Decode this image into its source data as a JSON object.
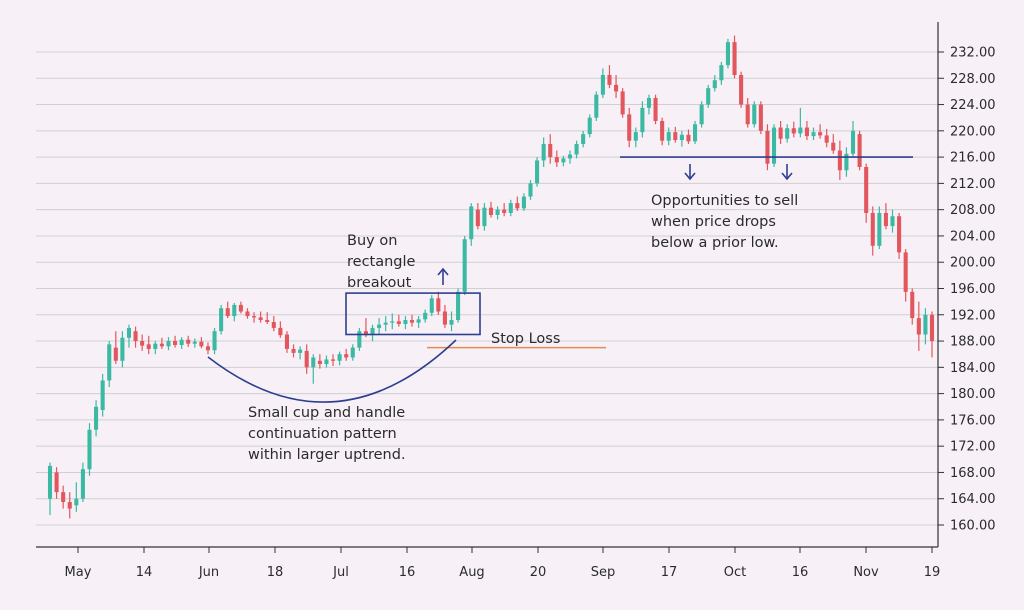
{
  "chart_data": {
    "type": "candlestick",
    "title": "",
    "xlabel": "",
    "ylabel": "",
    "ylim": [
      156,
      236
    ],
    "y_ticks": [
      "160.00",
      "164.00",
      "168.00",
      "172.00",
      "176.00",
      "180.00",
      "184.00",
      "188.00",
      "192.00",
      "196.00",
      "200.00",
      "204.00",
      "208.00",
      "212.00",
      "216.00",
      "220.00",
      "224.00",
      "228.00",
      "232.00"
    ],
    "x_ticks": [
      "May",
      "14",
      "Jun",
      "18",
      "Jul",
      "16",
      "Aug",
      "20",
      "Sep",
      "17",
      "Oct",
      "16",
      "Nov",
      "19"
    ],
    "grid": "horizontal",
    "colors": {
      "up": "#3bb9a3",
      "down": "#e1575d",
      "annotation": "#2f3f8f",
      "stop_loss": "#e08a55",
      "grid": "#cfcfd4",
      "axis": "#333333"
    },
    "candles": [
      {
        "o": 164,
        "h": 169.5,
        "l": 161.5,
        "c": 169
      },
      {
        "o": 168,
        "h": 168.8,
        "l": 164,
        "c": 165
      },
      {
        "o": 165,
        "h": 166,
        "l": 162.5,
        "c": 163.5
      },
      {
        "o": 163.5,
        "h": 165,
        "l": 161,
        "c": 162.5
      },
      {
        "o": 163,
        "h": 166.5,
        "l": 162,
        "c": 164
      },
      {
        "o": 164,
        "h": 169.5,
        "l": 163.5,
        "c": 168.5
      },
      {
        "o": 168.5,
        "h": 175.5,
        "l": 167.5,
        "c": 174.5
      },
      {
        "o": 174.5,
        "h": 179,
        "l": 173.5,
        "c": 178
      },
      {
        "o": 177.5,
        "h": 183,
        "l": 176.5,
        "c": 182
      },
      {
        "o": 182,
        "h": 188,
        "l": 181,
        "c": 187.5
      },
      {
        "o": 187,
        "h": 189.5,
        "l": 184.5,
        "c": 185
      },
      {
        "o": 185,
        "h": 189.5,
        "l": 184,
        "c": 188.5
      },
      {
        "o": 188.5,
        "h": 190.5,
        "l": 187,
        "c": 190
      },
      {
        "o": 189.5,
        "h": 190.2,
        "l": 187,
        "c": 188
      },
      {
        "o": 188,
        "h": 189,
        "l": 186.5,
        "c": 187.3
      },
      {
        "o": 187.5,
        "h": 188.8,
        "l": 186,
        "c": 186.8
      },
      {
        "o": 186.8,
        "h": 188,
        "l": 186,
        "c": 187.6
      },
      {
        "o": 187.6,
        "h": 188.5,
        "l": 186.8,
        "c": 187.2
      },
      {
        "o": 187.2,
        "h": 188.6,
        "l": 186.6,
        "c": 188
      },
      {
        "o": 188,
        "h": 188.8,
        "l": 187,
        "c": 187.4
      },
      {
        "o": 187.4,
        "h": 188.6,
        "l": 186.8,
        "c": 188.2
      },
      {
        "o": 188.2,
        "h": 188.8,
        "l": 187.1,
        "c": 187.6
      },
      {
        "o": 187.6,
        "h": 188.4,
        "l": 187,
        "c": 187.9
      },
      {
        "o": 187.9,
        "h": 188.6,
        "l": 186.9,
        "c": 187.2
      },
      {
        "o": 187.2,
        "h": 187.8,
        "l": 186,
        "c": 186.6
      },
      {
        "o": 186.6,
        "h": 190,
        "l": 186,
        "c": 189.5
      },
      {
        "o": 189.5,
        "h": 193.5,
        "l": 189,
        "c": 193
      },
      {
        "o": 193,
        "h": 194,
        "l": 191.5,
        "c": 191.8
      },
      {
        "o": 191.8,
        "h": 193.8,
        "l": 191,
        "c": 193.5
      },
      {
        "o": 193.5,
        "h": 194,
        "l": 192.2,
        "c": 192.5
      },
      {
        "o": 192.5,
        "h": 193,
        "l": 191.4,
        "c": 191.8
      },
      {
        "o": 191.8,
        "h": 192.4,
        "l": 190.8,
        "c": 191.6
      },
      {
        "o": 191.6,
        "h": 192.5,
        "l": 190.8,
        "c": 191.2
      },
      {
        "o": 191.2,
        "h": 192.4,
        "l": 190.6,
        "c": 190.9
      },
      {
        "o": 190.9,
        "h": 191.8,
        "l": 189.5,
        "c": 190
      },
      {
        "o": 190,
        "h": 191,
        "l": 188.5,
        "c": 188.9
      },
      {
        "o": 189,
        "h": 189.5,
        "l": 186.2,
        "c": 186.8
      },
      {
        "o": 186.8,
        "h": 187.5,
        "l": 185.5,
        "c": 186.2
      },
      {
        "o": 186.2,
        "h": 187.2,
        "l": 185.2,
        "c": 186.7
      },
      {
        "o": 186.5,
        "h": 187.5,
        "l": 183,
        "c": 184
      },
      {
        "o": 184,
        "h": 186,
        "l": 181.5,
        "c": 185.5
      },
      {
        "o": 185,
        "h": 186,
        "l": 183.8,
        "c": 184.5
      },
      {
        "o": 184.5,
        "h": 185.8,
        "l": 184,
        "c": 185.2
      },
      {
        "o": 185.2,
        "h": 186,
        "l": 184.2,
        "c": 185
      },
      {
        "o": 185,
        "h": 186.4,
        "l": 184.3,
        "c": 186
      },
      {
        "o": 186,
        "h": 186.8,
        "l": 185,
        "c": 185.5
      },
      {
        "o": 185.5,
        "h": 187.5,
        "l": 185,
        "c": 187
      },
      {
        "o": 187,
        "h": 190,
        "l": 186.5,
        "c": 189.5
      },
      {
        "o": 189.5,
        "h": 191.5,
        "l": 188.6,
        "c": 188.9
      },
      {
        "o": 188.9,
        "h": 190.5,
        "l": 188,
        "c": 190
      },
      {
        "o": 190,
        "h": 191.5,
        "l": 189,
        "c": 190.5
      },
      {
        "o": 190.5,
        "h": 191.8,
        "l": 189.5,
        "c": 190.8
      },
      {
        "o": 190.8,
        "h": 192.2,
        "l": 189.8,
        "c": 191
      },
      {
        "o": 191,
        "h": 192,
        "l": 190.2,
        "c": 190.6
      },
      {
        "o": 190.6,
        "h": 191.8,
        "l": 189.8,
        "c": 191.2
      },
      {
        "o": 191.2,
        "h": 192,
        "l": 190.2,
        "c": 190.8
      },
      {
        "o": 190.8,
        "h": 191.8,
        "l": 190,
        "c": 191.3
      },
      {
        "o": 191.3,
        "h": 192.8,
        "l": 190.8,
        "c": 192.3
      },
      {
        "o": 192.3,
        "h": 195,
        "l": 191.8,
        "c": 194.5
      },
      {
        "o": 194.5,
        "h": 195.5,
        "l": 192,
        "c": 192.5
      },
      {
        "o": 192.5,
        "h": 193.5,
        "l": 190,
        "c": 190.5
      },
      {
        "o": 190.5,
        "h": 192.5,
        "l": 189.5,
        "c": 191.2
      },
      {
        "o": 191.2,
        "h": 196,
        "l": 190.8,
        "c": 195.5
      },
      {
        "o": 195.5,
        "h": 204,
        "l": 195,
        "c": 203.5
      },
      {
        "o": 203.5,
        "h": 209,
        "l": 202.5,
        "c": 208.5
      },
      {
        "o": 208,
        "h": 209,
        "l": 205,
        "c": 205.5
      },
      {
        "o": 205.5,
        "h": 209,
        "l": 204.8,
        "c": 208.3
      },
      {
        "o": 208.3,
        "h": 209.2,
        "l": 206.8,
        "c": 207.2
      },
      {
        "o": 207.2,
        "h": 208.5,
        "l": 206.5,
        "c": 208
      },
      {
        "o": 208,
        "h": 209,
        "l": 207,
        "c": 207.5
      },
      {
        "o": 207.5,
        "h": 209.5,
        "l": 207,
        "c": 209
      },
      {
        "o": 209,
        "h": 210,
        "l": 207.8,
        "c": 208.2
      },
      {
        "o": 208.2,
        "h": 210.5,
        "l": 207.8,
        "c": 210
      },
      {
        "o": 210,
        "h": 212.5,
        "l": 209.5,
        "c": 212
      },
      {
        "o": 212,
        "h": 216,
        "l": 211.5,
        "c": 215.5
      },
      {
        "o": 215.5,
        "h": 219,
        "l": 214.5,
        "c": 218
      },
      {
        "o": 218,
        "h": 219.5,
        "l": 215,
        "c": 216
      },
      {
        "o": 216,
        "h": 217,
        "l": 214.5,
        "c": 215.2
      },
      {
        "o": 215.2,
        "h": 216.2,
        "l": 214.6,
        "c": 215.8
      },
      {
        "o": 215.8,
        "h": 217,
        "l": 215,
        "c": 216.4
      },
      {
        "o": 216.4,
        "h": 218.5,
        "l": 215.8,
        "c": 218
      },
      {
        "o": 218,
        "h": 220,
        "l": 217.5,
        "c": 219.5
      },
      {
        "o": 219.5,
        "h": 222.5,
        "l": 219,
        "c": 222
      },
      {
        "o": 222,
        "h": 226,
        "l": 221.5,
        "c": 225.5
      },
      {
        "o": 225.5,
        "h": 229.5,
        "l": 225,
        "c": 228.5
      },
      {
        "o": 228.5,
        "h": 230,
        "l": 226.5,
        "c": 227
      },
      {
        "o": 227,
        "h": 228.5,
        "l": 225,
        "c": 226
      },
      {
        "o": 226,
        "h": 226.5,
        "l": 222,
        "c": 222.5
      },
      {
        "o": 222.5,
        "h": 223.5,
        "l": 217.5,
        "c": 218.5
      },
      {
        "o": 218.5,
        "h": 220.5,
        "l": 217.5,
        "c": 219.8
      },
      {
        "o": 219.8,
        "h": 224.5,
        "l": 219,
        "c": 223.5
      },
      {
        "o": 223.5,
        "h": 225.5,
        "l": 222.5,
        "c": 225
      },
      {
        "o": 225,
        "h": 225.5,
        "l": 221,
        "c": 221.5
      },
      {
        "o": 221.5,
        "h": 222,
        "l": 217.8,
        "c": 218.5
      },
      {
        "o": 218.5,
        "h": 220.5,
        "l": 217.8,
        "c": 219.8
      },
      {
        "o": 219.8,
        "h": 220.6,
        "l": 218.2,
        "c": 218.6
      },
      {
        "o": 218.6,
        "h": 220,
        "l": 217.6,
        "c": 219.4
      },
      {
        "o": 219.4,
        "h": 220.2,
        "l": 218,
        "c": 218.4
      },
      {
        "o": 218.4,
        "h": 221.5,
        "l": 218,
        "c": 221
      },
      {
        "o": 221,
        "h": 224.5,
        "l": 220.5,
        "c": 224
      },
      {
        "o": 224,
        "h": 227,
        "l": 223.5,
        "c": 226.5
      },
      {
        "o": 226.5,
        "h": 228.5,
        "l": 226,
        "c": 227.7
      },
      {
        "o": 227.7,
        "h": 230.5,
        "l": 227,
        "c": 230
      },
      {
        "o": 230,
        "h": 234,
        "l": 229.5,
        "c": 233.5
      },
      {
        "o": 233.5,
        "h": 234.5,
        "l": 228,
        "c": 228.5
      },
      {
        "o": 228.5,
        "h": 229,
        "l": 223.5,
        "c": 224
      },
      {
        "o": 224,
        "h": 225,
        "l": 220.5,
        "c": 221
      },
      {
        "o": 221,
        "h": 224.5,
        "l": 220.5,
        "c": 224
      },
      {
        "o": 224,
        "h": 224.5,
        "l": 219.5,
        "c": 220
      },
      {
        "o": 220,
        "h": 221,
        "l": 214,
        "c": 215
      },
      {
        "o": 215,
        "h": 221,
        "l": 214.5,
        "c": 220.5
      },
      {
        "o": 220.5,
        "h": 221.5,
        "l": 218,
        "c": 218.8
      },
      {
        "o": 218.8,
        "h": 221,
        "l": 218.2,
        "c": 220.4
      },
      {
        "o": 220.4,
        "h": 221.4,
        "l": 219,
        "c": 219.6
      },
      {
        "o": 219.6,
        "h": 223.5,
        "l": 219,
        "c": 220.5
      },
      {
        "o": 220.5,
        "h": 221.5,
        "l": 218.6,
        "c": 219.2
      },
      {
        "o": 219.2,
        "h": 220.5,
        "l": 218.6,
        "c": 219.8
      },
      {
        "o": 219.8,
        "h": 221,
        "l": 218.8,
        "c": 219.3
      },
      {
        "o": 219.3,
        "h": 220.3,
        "l": 217.5,
        "c": 218.2
      },
      {
        "o": 218.2,
        "h": 219.5,
        "l": 216.5,
        "c": 217
      },
      {
        "o": 217,
        "h": 218.5,
        "l": 212.5,
        "c": 214
      },
      {
        "o": 214,
        "h": 217.5,
        "l": 213,
        "c": 216.5
      },
      {
        "o": 216.5,
        "h": 221.5,
        "l": 216,
        "c": 220
      },
      {
        "o": 219.5,
        "h": 220,
        "l": 214,
        "c": 214.5
      },
      {
        "o": 214.5,
        "h": 215,
        "l": 206,
        "c": 207.5
      },
      {
        "o": 207.5,
        "h": 208.5,
        "l": 201,
        "c": 202.5
      },
      {
        "o": 202.5,
        "h": 208.5,
        "l": 202,
        "c": 207.5
      },
      {
        "o": 207.5,
        "h": 209,
        "l": 205,
        "c": 205.5
      },
      {
        "o": 205.5,
        "h": 208,
        "l": 204.5,
        "c": 207
      },
      {
        "o": 207,
        "h": 207.5,
        "l": 200.5,
        "c": 201.5
      },
      {
        "o": 201.5,
        "h": 202,
        "l": 194,
        "c": 195.5
      },
      {
        "o": 195.5,
        "h": 196,
        "l": 190.5,
        "c": 191.5
      },
      {
        "o": 191.5,
        "h": 194,
        "l": 186.5,
        "c": 189
      },
      {
        "o": 189,
        "h": 193,
        "l": 187.5,
        "c": 192
      },
      {
        "o": 192,
        "h": 192.5,
        "l": 185.5,
        "c": 188
      }
    ],
    "annotations": [
      {
        "lines": [
          "Buy on",
          "rectangle",
          "breakout"
        ]
      },
      {
        "lines": [
          "Stop Loss"
        ]
      },
      {
        "lines": [
          "Small cup and handle",
          "continuation pattern",
          "within larger uptrend."
        ]
      },
      {
        "lines": [
          "Opportunities to sell",
          "when price drops",
          "below a prior low."
        ]
      }
    ],
    "rectangle_range": [
      189,
      195.3
    ],
    "stop_loss_level": 187,
    "sell_line_level": 216
  }
}
